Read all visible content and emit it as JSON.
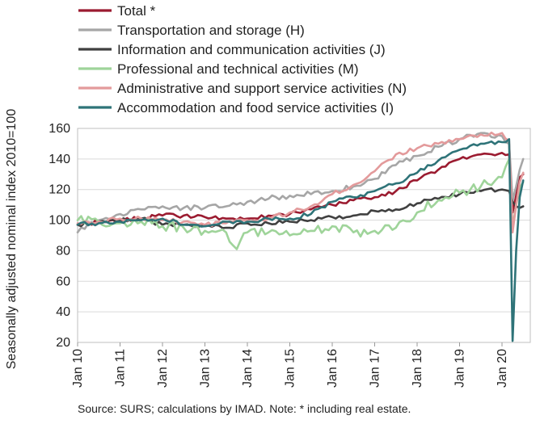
{
  "chart_data": {
    "type": "line",
    "ylabel": "Seasonally adjusted nominal index 2010=100",
    "xlabel": "",
    "ylim": [
      20,
      160
    ],
    "yticks": [
      20,
      40,
      60,
      80,
      100,
      120,
      140,
      160
    ],
    "xticks": [
      "Jan 10",
      "Jan 11",
      "Jan 12",
      "Jan 13",
      "Jan 14",
      "Jan 15",
      "Jan 16",
      "Jan 17",
      "Jan 18",
      "Jan 19",
      "Jan 20"
    ],
    "grid": true,
    "legend_position": "top-left",
    "source": "Source:  SURS; calculations by IMAD. Note: * including real estate.",
    "series": [
      {
        "name": "Total *",
        "color": "#9b1b30",
        "points": [
          [
            "2010-01",
            97
          ],
          [
            "2010-07",
            99
          ],
          [
            "2011-01",
            100
          ],
          [
            "2011-07",
            101
          ],
          [
            "2012-01",
            103
          ],
          [
            "2012-07",
            103
          ],
          [
            "2013-01",
            102
          ],
          [
            "2013-07",
            101
          ],
          [
            "2014-01",
            101
          ],
          [
            "2014-07",
            103
          ],
          [
            "2015-01",
            104
          ],
          [
            "2015-07",
            107
          ],
          [
            "2016-01",
            110
          ],
          [
            "2016-07",
            113
          ],
          [
            "2017-01",
            115
          ],
          [
            "2017-07",
            119
          ],
          [
            "2018-01",
            126
          ],
          [
            "2018-07",
            133
          ],
          [
            "2019-01",
            140
          ],
          [
            "2019-07",
            143
          ],
          [
            "2020-01",
            144
          ],
          [
            "2020-03",
            143
          ],
          [
            "2020-04",
            105
          ],
          [
            "2020-05",
            116
          ],
          [
            "2020-06",
            128
          ],
          [
            "2020-07",
            130
          ]
        ]
      },
      {
        "name": "Transportation and storage (H)",
        "color": "#a6a6a6",
        "points": [
          [
            "2010-01",
            92
          ],
          [
            "2010-07",
            100
          ],
          [
            "2011-01",
            104
          ],
          [
            "2011-07",
            107
          ],
          [
            "2012-01",
            109
          ],
          [
            "2012-07",
            108
          ],
          [
            "2013-01",
            108
          ],
          [
            "2013-07",
            109
          ],
          [
            "2014-01",
            112
          ],
          [
            "2014-07",
            114
          ],
          [
            "2015-01",
            116
          ],
          [
            "2015-07",
            117
          ],
          [
            "2016-01",
            119
          ],
          [
            "2016-07",
            122
          ],
          [
            "2017-01",
            127
          ],
          [
            "2017-07",
            136
          ],
          [
            "2018-01",
            142
          ],
          [
            "2018-07",
            148
          ],
          [
            "2019-01",
            153
          ],
          [
            "2019-07",
            157
          ],
          [
            "2020-01",
            155
          ],
          [
            "2020-03",
            150
          ],
          [
            "2020-04",
            113
          ],
          [
            "2020-05",
            122
          ],
          [
            "2020-06",
            133
          ],
          [
            "2020-07",
            140
          ]
        ]
      },
      {
        "name": "Information and communication activities (J)",
        "color": "#404040",
        "points": [
          [
            "2010-01",
            97
          ],
          [
            "2010-07",
            99
          ],
          [
            "2011-01",
            100
          ],
          [
            "2011-07",
            101
          ],
          [
            "2012-01",
            97
          ],
          [
            "2012-07",
            97
          ],
          [
            "2013-01",
            96
          ],
          [
            "2013-07",
            95
          ],
          [
            "2014-01",
            98
          ],
          [
            "2014-07",
            98
          ],
          [
            "2015-01",
            99
          ],
          [
            "2015-07",
            100
          ],
          [
            "2016-01",
            102
          ],
          [
            "2016-07",
            103
          ],
          [
            "2017-01",
            106
          ],
          [
            "2017-07",
            107
          ],
          [
            "2018-01",
            111
          ],
          [
            "2018-07",
            114
          ],
          [
            "2019-01",
            117
          ],
          [
            "2019-07",
            119
          ],
          [
            "2020-01",
            120
          ],
          [
            "2020-03",
            119
          ],
          [
            "2020-04",
            112
          ],
          [
            "2020-05",
            109
          ],
          [
            "2020-06",
            108
          ],
          [
            "2020-07",
            109
          ]
        ]
      },
      {
        "name": "Professional and technical activities (M)",
        "color": "#9fd49a",
        "points": [
          [
            "2010-01",
            100
          ],
          [
            "2010-07",
            99
          ],
          [
            "2011-01",
            98
          ],
          [
            "2011-07",
            99
          ],
          [
            "2012-01",
            96
          ],
          [
            "2012-07",
            95
          ],
          [
            "2013-01",
            93
          ],
          [
            "2013-07",
            92
          ],
          [
            "2013-10",
            81
          ],
          [
            "2014-01",
            92
          ],
          [
            "2014-07",
            92
          ],
          [
            "2015-01",
            90
          ],
          [
            "2015-07",
            93
          ],
          [
            "2016-01",
            96
          ],
          [
            "2016-07",
            92
          ],
          [
            "2017-01",
            93
          ],
          [
            "2017-07",
            95
          ],
          [
            "2018-01",
            105
          ],
          [
            "2018-07",
            113
          ],
          [
            "2019-01",
            118
          ],
          [
            "2019-07",
            122
          ],
          [
            "2020-01",
            128
          ],
          [
            "2020-03",
            140
          ],
          [
            "2020-04",
            95
          ],
          [
            "2020-05",
            110
          ],
          [
            "2020-06",
            121
          ],
          [
            "2020-07",
            125
          ]
        ]
      },
      {
        "name": "Administrative and support service activities (N)",
        "color": "#e39a9b",
        "points": [
          [
            "2010-01",
            98
          ],
          [
            "2010-07",
            99
          ],
          [
            "2011-01",
            101
          ],
          [
            "2011-07",
            101
          ],
          [
            "2012-01",
            100
          ],
          [
            "2012-07",
            99
          ],
          [
            "2013-01",
            97
          ],
          [
            "2013-07",
            98
          ],
          [
            "2014-01",
            100
          ],
          [
            "2014-07",
            101
          ],
          [
            "2015-01",
            105
          ],
          [
            "2015-07",
            109
          ],
          [
            "2016-01",
            117
          ],
          [
            "2016-07",
            123
          ],
          [
            "2017-01",
            132
          ],
          [
            "2017-07",
            143
          ],
          [
            "2018-01",
            147
          ],
          [
            "2018-07",
            150
          ],
          [
            "2019-01",
            153
          ],
          [
            "2019-07",
            156
          ],
          [
            "2020-01",
            157
          ],
          [
            "2020-03",
            152
          ],
          [
            "2020-04",
            92
          ],
          [
            "2020-05",
            110
          ],
          [
            "2020-06",
            125
          ],
          [
            "2020-07",
            131
          ]
        ]
      },
      {
        "name": "Accommodation and food service activities (I)",
        "color": "#2e7378",
        "points": [
          [
            "2010-01",
            97
          ],
          [
            "2010-07",
            98
          ],
          [
            "2011-01",
            99
          ],
          [
            "2011-07",
            100
          ],
          [
            "2012-01",
            101
          ],
          [
            "2012-07",
            97
          ],
          [
            "2013-01",
            96
          ],
          [
            "2013-07",
            99
          ],
          [
            "2014-01",
            99
          ],
          [
            "2014-07",
            101
          ],
          [
            "2015-01",
            101
          ],
          [
            "2015-07",
            104
          ],
          [
            "2016-01",
            112
          ],
          [
            "2016-07",
            115
          ],
          [
            "2017-01",
            119
          ],
          [
            "2017-07",
            124
          ],
          [
            "2018-01",
            131
          ],
          [
            "2018-07",
            139
          ],
          [
            "2019-01",
            146
          ],
          [
            "2019-07",
            150
          ],
          [
            "2020-01",
            151
          ],
          [
            "2020-03",
            153
          ],
          [
            "2020-04",
            21
          ],
          [
            "2020-05",
            80
          ],
          [
            "2020-06",
            115
          ],
          [
            "2020-07",
            126
          ]
        ]
      }
    ]
  }
}
